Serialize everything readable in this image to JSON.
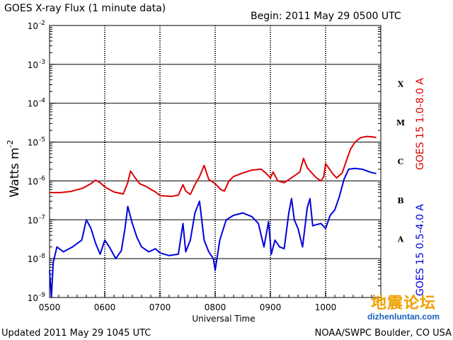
{
  "header": {
    "title": "GOES X-ray Flux (1 minute data)",
    "begin": "Begin: 2011 May 29 0500 UTC"
  },
  "footer": {
    "updated": "Updated 2011 May 29 1045 UTC",
    "source": "NOAA/SWPC Boulder, CO USA"
  },
  "watermark": {
    "cn": "地震论坛",
    "url": "dizhenluntan.com"
  },
  "colors": {
    "long": "#dd0000",
    "short": "#0000dd",
    "grid": "#000000"
  },
  "chart_data": {
    "type": "line",
    "xlabel": "Universal Time",
    "ylabel": "Watts m",
    "ylabel_sup": "-2",
    "x_unit": "HHMM UTC",
    "xlim": [
      "0500",
      "1100"
    ],
    "yscale": "log",
    "ylim": [
      1e-09,
      0.01
    ],
    "x_tick_labels": [
      "0500",
      "0600",
      "0700",
      "0800",
      "0900",
      "1000"
    ],
    "y_tick_labels": [
      {
        "base": "10",
        "exp": "-9"
      },
      {
        "base": "10",
        "exp": "-8"
      },
      {
        "base": "10",
        "exp": "-7"
      },
      {
        "base": "10",
        "exp": "-6"
      },
      {
        "base": "10",
        "exp": "-5"
      },
      {
        "base": "10",
        "exp": "-4"
      },
      {
        "base": "10",
        "exp": "-3"
      },
      {
        "base": "10",
        "exp": "-2"
      }
    ],
    "flare_classes": [
      "A",
      "B",
      "C",
      "M",
      "X"
    ],
    "grid": true,
    "series": [
      {
        "name": "GOES 15 1.0-8.0 A",
        "color": "#dd0000",
        "points": [
          [
            "0500",
            5e-07
          ],
          [
            "0512",
            5e-07
          ],
          [
            "0524",
            5.4e-07
          ],
          [
            "0536",
            6.5e-07
          ],
          [
            "0545",
            8.5e-07
          ],
          [
            "0550",
            1.05e-06
          ],
          [
            "0555",
            9e-07
          ],
          [
            "0600",
            7e-07
          ],
          [
            "0610",
            5.2e-07
          ],
          [
            "0620",
            4.6e-07
          ],
          [
            "0625",
            9e-07
          ],
          [
            "0628",
            1.8e-06
          ],
          [
            "0633",
            1.2e-06
          ],
          [
            "0638",
            8.5e-07
          ],
          [
            "0645",
            7.2e-07
          ],
          [
            "0655",
            5.2e-07
          ],
          [
            "0700",
            4.2e-07
          ],
          [
            "0712",
            4e-07
          ],
          [
            "0720",
            4.3e-07
          ],
          [
            "0725",
            8e-07
          ],
          [
            "0728",
            5.5e-07
          ],
          [
            "0733",
            4.5e-07
          ],
          [
            "0738",
            8e-07
          ],
          [
            "0743",
            1.3e-06
          ],
          [
            "0748",
            2.5e-06
          ],
          [
            "0753",
            1.1e-06
          ],
          [
            "0800",
            8.5e-07
          ],
          [
            "0806",
            6e-07
          ],
          [
            "0810",
            5.5e-07
          ],
          [
            "0815",
            1e-06
          ],
          [
            "0820",
            1.3e-06
          ],
          [
            "0830",
            1.6e-06
          ],
          [
            "0840",
            1.9e-06
          ],
          [
            "0850",
            2e-06
          ],
          [
            "0855",
            1.6e-06
          ],
          [
            "0900",
            1.2e-06
          ],
          [
            "0903",
            1.7e-06
          ],
          [
            "0908",
            1e-06
          ],
          [
            "0915",
            9e-07
          ],
          [
            "0925",
            1.3e-06
          ],
          [
            "0932",
            1.7e-06
          ],
          [
            "0936",
            3.8e-06
          ],
          [
            "0940",
            2.2e-06
          ],
          [
            "0945",
            1.6e-06
          ],
          [
            "0950",
            1.2e-06
          ],
          [
            "0955",
            1e-06
          ],
          [
            "0958",
            1.3e-06
          ],
          [
            "1000",
            2.8e-06
          ],
          [
            "1003",
            2.2e-06
          ],
          [
            "1008",
            1.5e-06
          ],
          [
            "1012",
            1.2e-06
          ],
          [
            "1018",
            1.6e-06
          ],
          [
            "1022",
            3e-06
          ],
          [
            "1027",
            6.5e-06
          ],
          [
            "1032",
            1e-05
          ],
          [
            "1038",
            1.3e-05
          ],
          [
            "1045",
            1.4e-05
          ],
          [
            "1052",
            1.35e-05
          ],
          [
            "1055",
            1.3e-05
          ]
        ]
      },
      {
        "name": "GOES 15 0.5-4.0 A",
        "color": "#0000dd",
        "points": [
          [
            "0500",
            5e-09
          ],
          [
            "0502",
            1e-09
          ],
          [
            "0504",
            8e-09
          ],
          [
            "0508",
            2e-08
          ],
          [
            "0515",
            1.5e-08
          ],
          [
            "0525",
            2e-08
          ],
          [
            "0535",
            3e-08
          ],
          [
            "0540",
            1e-07
          ],
          [
            "0545",
            6e-08
          ],
          [
            "0550",
            2.5e-08
          ],
          [
            "0555",
            1.3e-08
          ],
          [
            "0600",
            3e-08
          ],
          [
            "0605",
            2e-08
          ],
          [
            "0612",
            1e-08
          ],
          [
            "0618",
            1.6e-08
          ],
          [
            "0622",
            6e-08
          ],
          [
            "0625",
            2.2e-07
          ],
          [
            "0630",
            8e-08
          ],
          [
            "0635",
            3.5e-08
          ],
          [
            "0640",
            2e-08
          ],
          [
            "0648",
            1.5e-08
          ],
          [
            "0655",
            1.8e-08
          ],
          [
            "0700",
            1.4e-08
          ],
          [
            "0710",
            1.2e-08
          ],
          [
            "0720",
            1.3e-08
          ],
          [
            "0725",
            8e-08
          ],
          [
            "0728",
            1.5e-08
          ],
          [
            "0733",
            3e-08
          ],
          [
            "0738",
            1.5e-07
          ],
          [
            "0743",
            3e-07
          ],
          [
            "0748",
            3e-08
          ],
          [
            "0753",
            1.5e-08
          ],
          [
            "0758",
            1e-08
          ],
          [
            "0800",
            5e-09
          ],
          [
            "0805",
            3e-08
          ],
          [
            "0812",
            1e-07
          ],
          [
            "0820",
            1.3e-07
          ],
          [
            "0830",
            1.5e-07
          ],
          [
            "0840",
            1.2e-07
          ],
          [
            "0847",
            8e-08
          ],
          [
            "0853",
            2e-08
          ],
          [
            "0858",
            9e-08
          ],
          [
            "0901",
            1.3e-08
          ],
          [
            "0905",
            3e-08
          ],
          [
            "0910",
            2e-08
          ],
          [
            "0915",
            1.8e-08
          ],
          [
            "0920",
            1.5e-07
          ],
          [
            "0923",
            3.5e-07
          ],
          [
            "0926",
            1e-07
          ],
          [
            "0930",
            6e-08
          ],
          [
            "0935",
            2e-08
          ],
          [
            "0940",
            2e-07
          ],
          [
            "0943",
            3.5e-07
          ],
          [
            "0946",
            7e-08
          ],
          [
            "0950",
            7.5e-08
          ],
          [
            "0955",
            8e-08
          ],
          [
            "1000",
            6e-08
          ],
          [
            "1005",
            1.3e-07
          ],
          [
            "1010",
            1.8e-07
          ],
          [
            "1015",
            4e-07
          ],
          [
            "1020",
            1.1e-06
          ],
          [
            "1025",
            2e-06
          ],
          [
            "1032",
            2.1e-06
          ],
          [
            "1040",
            2e-06
          ],
          [
            "1048",
            1.7e-06
          ],
          [
            "1052",
            1.6e-06
          ],
          [
            "1055",
            1.55e-06
          ]
        ]
      }
    ]
  }
}
